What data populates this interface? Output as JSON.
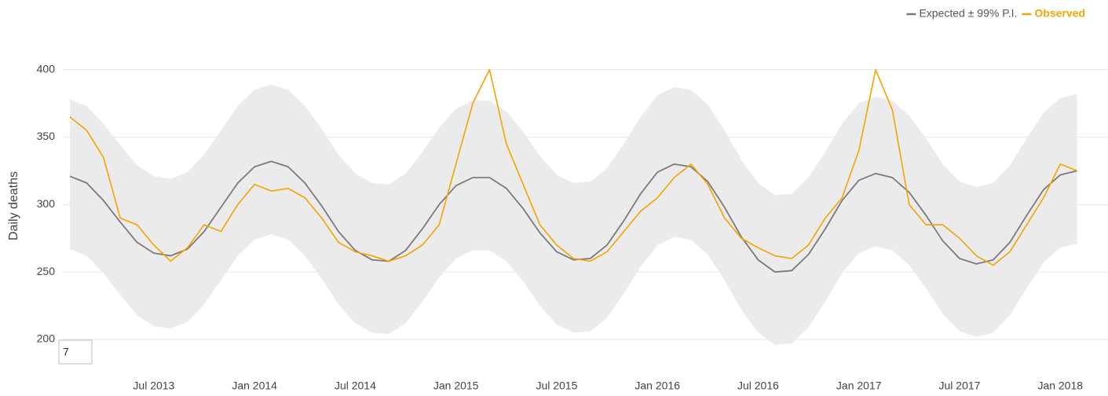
{
  "chart_data": {
    "type": "line",
    "y_label": "Daily deaths",
    "annotation": "7",
    "x": [
      "2013-02",
      "2013-03",
      "2013-04",
      "2013-05",
      "2013-06",
      "2013-07",
      "2013-08",
      "2013-09",
      "2013-10",
      "2013-11",
      "2013-12",
      "2014-01",
      "2014-02",
      "2014-03",
      "2014-04",
      "2014-05",
      "2014-06",
      "2014-07",
      "2014-08",
      "2014-09",
      "2014-10",
      "2014-11",
      "2014-12",
      "2015-01",
      "2015-02",
      "2015-03",
      "2015-04",
      "2015-05",
      "2015-06",
      "2015-07",
      "2015-08",
      "2015-09",
      "2015-10",
      "2015-11",
      "2015-12",
      "2016-01",
      "2016-02",
      "2016-03",
      "2016-04",
      "2016-05",
      "2016-06",
      "2016-07",
      "2016-08",
      "2016-09",
      "2016-10",
      "2016-11",
      "2016-12",
      "2017-01",
      "2017-02",
      "2017-03",
      "2017-04",
      "2017-05",
      "2017-06",
      "2017-07",
      "2017-08",
      "2017-09",
      "2017-10",
      "2017-11",
      "2017-12",
      "2018-01",
      "2018-02"
    ],
    "xlim": [
      "2013-02",
      "2018-03"
    ],
    "xticks": [
      {
        "value": "2013-07",
        "label": "Jul 2013"
      },
      {
        "value": "2014-01",
        "label": "Jan 2014"
      },
      {
        "value": "2014-07",
        "label": "Jul 2014"
      },
      {
        "value": "2015-01",
        "label": "Jan 2015"
      },
      {
        "value": "2015-07",
        "label": "Jul 2015"
      },
      {
        "value": "2016-01",
        "label": "Jan 2016"
      },
      {
        "value": "2016-07",
        "label": "Jul 2016"
      },
      {
        "value": "2017-01",
        "label": "Jan 2017"
      },
      {
        "value": "2017-07",
        "label": "Jul 2017"
      },
      {
        "value": "2018-01",
        "label": "Jan 2018"
      }
    ],
    "ylim": [
      200,
      440
    ],
    "yticks": [
      200,
      250,
      300,
      350,
      400
    ],
    "grid": true,
    "legend": "top-right",
    "series": [
      {
        "name": "Expected ± 99% P.I.",
        "color": "#7a7a7a",
        "band_color": "#ebebeb",
        "values": [
          321,
          316,
          303,
          287,
          272,
          264,
          262,
          267,
          280,
          298,
          316,
          328,
          332,
          328,
          316,
          299,
          280,
          266,
          259,
          258,
          266,
          282,
          300,
          314,
          320,
          320,
          312,
          297,
          279,
          265,
          259,
          260,
          270,
          288,
          308,
          324,
          330,
          328,
          317,
          298,
          276,
          259,
          250,
          251,
          263,
          282,
          303,
          318,
          323,
          320,
          309,
          292,
          273,
          260,
          256,
          259,
          272,
          292,
          311,
          322,
          325
        ],
        "lower": [
          267,
          262,
          249,
          233,
          218,
          210,
          208,
          213,
          226,
          244,
          262,
          274,
          278,
          274,
          262,
          245,
          226,
          212,
          205,
          204,
          212,
          228,
          246,
          260,
          266,
          266,
          258,
          243,
          225,
          211,
          205,
          206,
          216,
          234,
          254,
          270,
          276,
          274,
          263,
          244,
          222,
          205,
          196,
          197,
          209,
          228,
          249,
          264,
          269,
          266,
          255,
          238,
          219,
          206,
          202,
          205,
          218,
          238,
          257,
          268,
          271
        ],
        "upper": [
          378,
          373,
          360,
          344,
          329,
          321,
          319,
          324,
          337,
          355,
          373,
          385,
          389,
          385,
          373,
          356,
          337,
          323,
          316,
          315,
          323,
          339,
          357,
          371,
          377,
          377,
          369,
          354,
          336,
          322,
          316,
          317,
          327,
          345,
          365,
          381,
          387,
          385,
          374,
          355,
          333,
          316,
          307,
          308,
          320,
          339,
          360,
          375,
          380,
          377,
          366,
          349,
          330,
          317,
          313,
          316,
          329,
          349,
          368,
          379,
          382
        ]
      },
      {
        "name": "Observed",
        "color": "#f5a300",
        "values": [
          365,
          355,
          335,
          290,
          285,
          270,
          258,
          268,
          285,
          280,
          300,
          315,
          310,
          312,
          305,
          290,
          272,
          265,
          262,
          258,
          262,
          270,
          285,
          330,
          375,
          400,
          345,
          315,
          285,
          270,
          260,
          258,
          265,
          280,
          295,
          305,
          320,
          330,
          315,
          290,
          275,
          268,
          262,
          260,
          270,
          290,
          305,
          340,
          400,
          370,
          300,
          285,
          285,
          275,
          262,
          255,
          265,
          285,
          305,
          330,
          325
        ]
      }
    ]
  }
}
